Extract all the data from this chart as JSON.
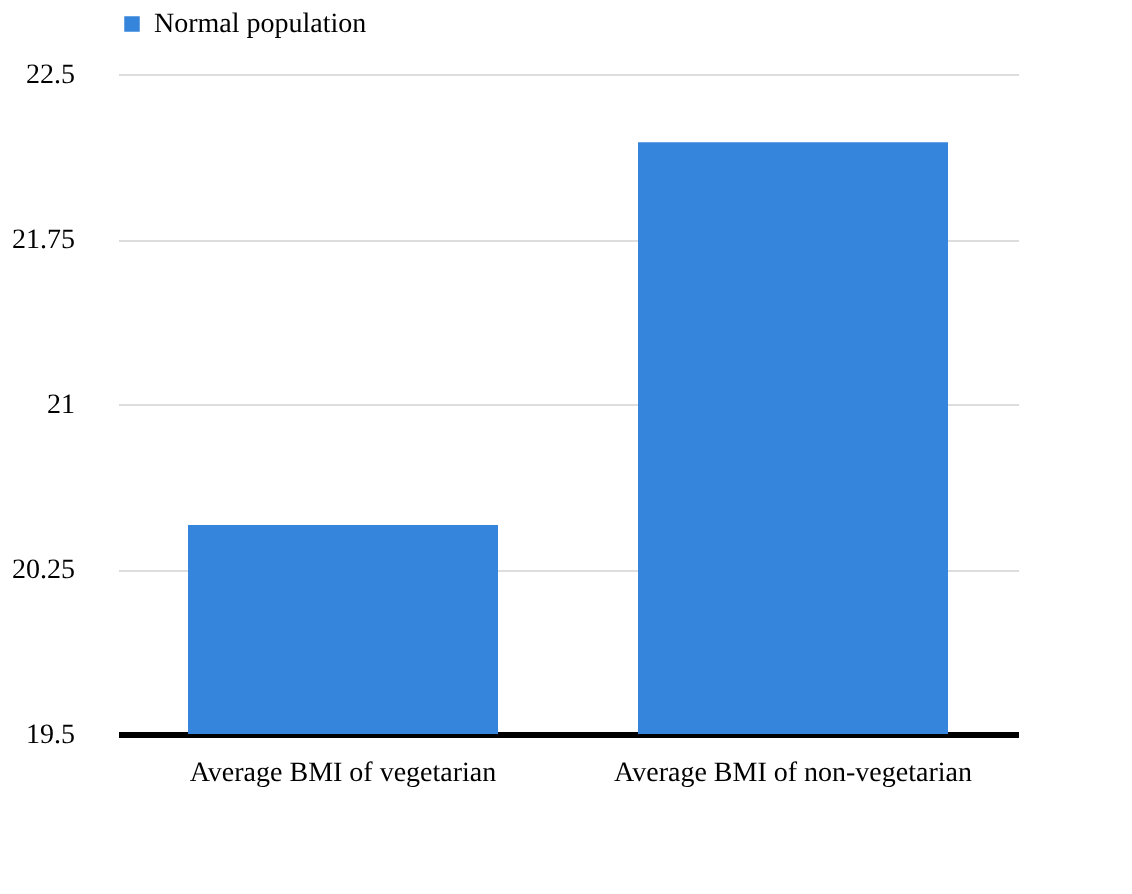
{
  "chart_data": {
    "type": "bar",
    "categories": [
      "Average BMI  of vegetarian",
      "Average BMI of non-vegetarian"
    ],
    "series": [
      {
        "name": "Normal population",
        "color": "#3585dc",
        "values": [
          20.45,
          22.19
        ]
      }
    ],
    "ylim": [
      19.5,
      22.5
    ],
    "yticks": [
      19.5,
      20.25,
      21,
      21.75,
      22.5
    ],
    "grid": "y",
    "legend": "top"
  }
}
